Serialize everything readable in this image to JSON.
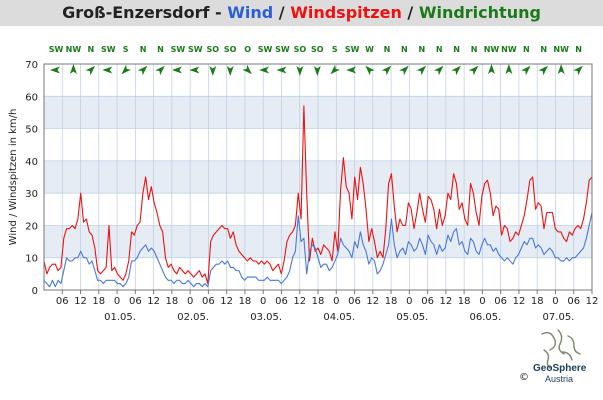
{
  "title": {
    "place": "Groß-Enzersdorf",
    "sep1": " - ",
    "wind": "Wind",
    "sep2": " / ",
    "gusts": "Windspitzen",
    "sep3": " / ",
    "direction": "Windrichtung"
  },
  "colors": {
    "wind": "#4a78d8",
    "gusts": "#ee1111",
    "direction": "#1a7a1a",
    "place": "#222222",
    "band": "#e6ecf4",
    "grid": "#b9cde4",
    "frame": "#777777"
  },
  "brand": {
    "name": "GeoSphere",
    "sub": "Austria",
    "copyright": "©"
  },
  "chart_data": {
    "type": "line",
    "ylabel": "Wind / Windspitzen in km/h",
    "ylim": [
      0,
      70
    ],
    "yticks": [
      0,
      10,
      20,
      30,
      40,
      50,
      60,
      70
    ],
    "xlim": [
      0,
      170
    ],
    "x_tick_hours": [
      "06",
      "12",
      "18",
      "0",
      "06",
      "12",
      "18",
      "0",
      "06",
      "12",
      "18",
      "0",
      "06",
      "12",
      "18",
      "0",
      "06",
      "12",
      "18",
      "0",
      "06",
      "12",
      "18",
      "0",
      "06",
      "12",
      "18",
      "0",
      "06",
      "12"
    ],
    "day_labels": [
      "01.05.",
      "02.05.",
      "03.05.",
      "04.05.",
      "05.05.",
      "06.05.",
      "07.05."
    ],
    "direction_labels": [
      "SW",
      "NW",
      "N",
      "SW",
      "S",
      "N",
      "N",
      "SW",
      "SW",
      "SO",
      "SO",
      "O",
      "SW",
      "SW",
      "SO",
      "SO",
      "S",
      "SW",
      "W",
      "N",
      "N",
      "N",
      "N",
      "N",
      "N",
      "NW",
      "NW",
      "N",
      "N",
      "NW",
      "N"
    ],
    "direction_angles": [
      225,
      315,
      0,
      225,
      180,
      0,
      0,
      225,
      225,
      135,
      135,
      90,
      225,
      225,
      135,
      135,
      180,
      225,
      270,
      0,
      0,
      0,
      0,
      0,
      0,
      315,
      315,
      0,
      0,
      315,
      0
    ],
    "series": [
      {
        "name": "Windspitzen",
        "color": "#ee1111",
        "values": [
          9,
          5,
          7,
          8,
          8,
          6,
          7,
          16,
          19,
          19,
          20,
          19,
          22,
          30,
          21,
          22,
          18,
          17,
          13,
          6,
          5,
          6,
          7,
          20,
          6,
          7,
          5,
          4,
          3,
          5,
          9,
          18,
          17,
          20,
          21,
          30,
          35,
          28,
          32,
          27,
          24,
          20,
          18,
          10,
          7,
          8,
          6,
          5,
          7,
          6,
          5,
          6,
          5,
          4,
          5,
          6,
          4,
          5,
          2,
          15,
          17,
          18,
          19,
          20,
          19,
          19,
          16,
          18,
          14,
          12,
          11,
          10,
          9,
          10,
          9,
          9,
          8,
          9,
          8,
          9,
          8,
          6,
          7,
          8,
          5,
          9,
          15,
          17,
          18,
          20,
          30,
          22,
          57,
          30,
          9,
          16,
          12,
          13,
          11,
          14,
          13,
          12,
          9,
          18,
          12,
          31,
          41,
          32,
          30,
          22,
          35,
          28,
          38,
          33,
          25,
          15,
          19,
          15,
          10,
          12,
          10,
          19,
          33,
          36,
          26,
          18,
          22,
          20,
          20,
          27,
          25,
          19,
          24,
          30,
          25,
          21,
          29,
          28,
          25,
          19,
          25,
          20,
          23,
          30,
          28,
          36,
          33,
          25,
          27,
          22,
          20,
          33,
          30,
          24,
          20,
          29,
          33,
          34,
          30,
          23,
          26,
          25,
          17,
          20,
          19,
          15,
          16,
          18,
          17,
          20,
          23,
          28,
          34,
          35,
          25,
          27,
          26,
          19,
          24,
          24,
          24,
          19,
          18,
          18,
          16,
          15,
          18,
          17,
          19,
          20,
          19,
          22,
          27,
          34,
          35
        ]
      },
      {
        "name": "Wind",
        "color": "#4a78d8",
        "values": [
          3,
          2,
          1,
          3,
          1,
          3,
          2,
          6,
          10,
          9,
          9,
          10,
          10,
          12,
          10,
          10,
          8,
          9,
          6,
          3,
          3,
          2,
          3,
          3,
          3,
          3,
          2,
          2,
          1,
          2,
          4,
          9,
          9,
          10,
          12,
          13,
          14,
          12,
          13,
          12,
          10,
          8,
          6,
          4,
          3,
          3,
          2,
          3,
          3,
          2,
          2,
          3,
          2,
          1,
          2,
          2,
          1,
          2,
          1,
          6,
          7,
          8,
          8,
          9,
          8,
          9,
          7,
          7,
          6,
          6,
          4,
          3,
          4,
          4,
          4,
          4,
          3,
          3,
          3,
          4,
          3,
          3,
          3,
          3,
          2,
          3,
          4,
          6,
          10,
          12,
          23,
          15,
          16,
          5,
          12,
          14,
          13,
          10,
          7,
          8,
          8,
          6,
          7,
          9,
          11,
          16,
          14,
          13,
          12,
          10,
          15,
          13,
          18,
          14,
          12,
          8,
          10,
          9,
          5,
          6,
          8,
          11,
          14,
          22,
          14,
          10,
          12,
          13,
          11,
          15,
          14,
          12,
          13,
          16,
          14,
          11,
          17,
          15,
          14,
          11,
          14,
          12,
          13,
          17,
          15,
          18,
          19,
          14,
          15,
          12,
          11,
          16,
          15,
          12,
          11,
          14,
          16,
          14,
          14,
          12,
          13,
          11,
          10,
          9,
          10,
          9,
          8,
          10,
          11,
          13,
          15,
          14,
          16,
          16,
          13,
          14,
          13,
          11,
          12,
          13,
          12,
          10,
          10,
          9,
          9,
          10,
          9,
          10,
          10,
          11,
          12,
          13,
          16,
          20,
          24
        ]
      }
    ]
  }
}
